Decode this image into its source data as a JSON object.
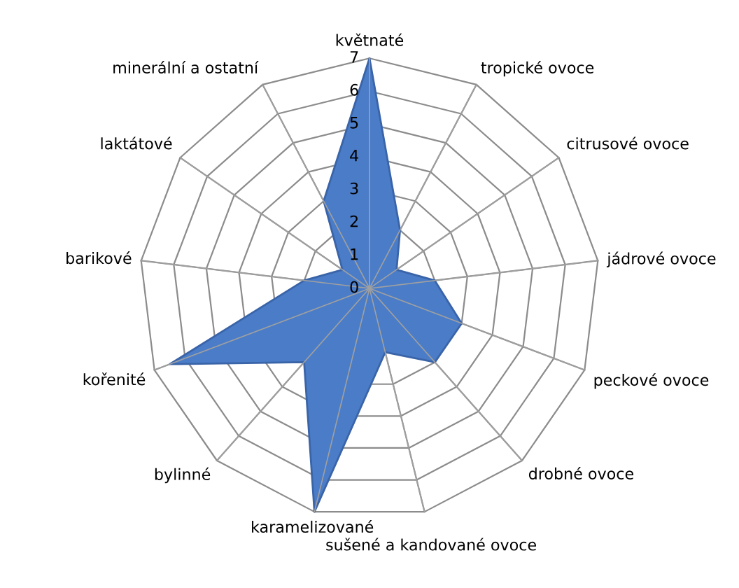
{
  "chart_data": {
    "type": "radar",
    "categories": [
      "květnaté",
      "tropické ovoce",
      "citrusové ovoce",
      "jádrové ovoce",
      "peckové ovoce",
      "drobné ovoce",
      "sušené a kandované ovoce",
      "karamelizované",
      "bylinné",
      "kořenité",
      "barikové",
      "laktátové",
      "minerální a ostatní"
    ],
    "series": [
      {
        "color": "#4a7cc8",
        "type": "area",
        "values": [
          7,
          2,
          1,
          2,
          3,
          3,
          2,
          7,
          3,
          6.5,
          2,
          1,
          3
        ]
      }
    ],
    "ylim": [
      0,
      7
    ],
    "yticks": [
      0,
      1,
      2,
      3,
      4,
      5,
      6,
      7
    ],
    "grid": true
  }
}
